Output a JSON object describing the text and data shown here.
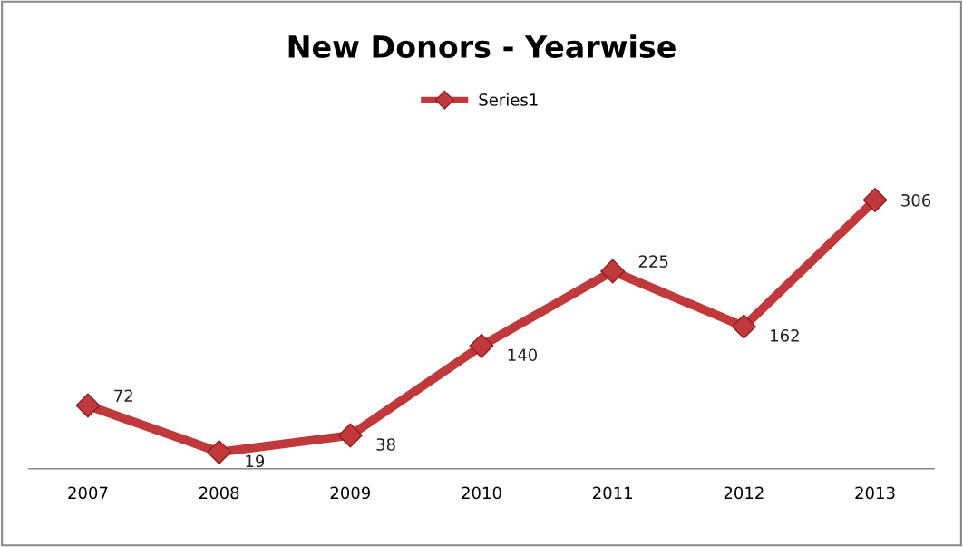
{
  "chart_data": {
    "type": "line",
    "title": "New Donors - Yearwise",
    "categories": [
      "2007",
      "2008",
      "2009",
      "2010",
      "2011",
      "2012",
      "2013"
    ],
    "series": [
      {
        "name": "Series1",
        "color": "#c0393b",
        "values": [
          72,
          19,
          38,
          140,
          225,
          162,
          306
        ]
      }
    ],
    "data_labels": true,
    "legend": "top",
    "marker": "diamond",
    "line_style": "solid",
    "tick_labels": "x",
    "grid": false
  }
}
